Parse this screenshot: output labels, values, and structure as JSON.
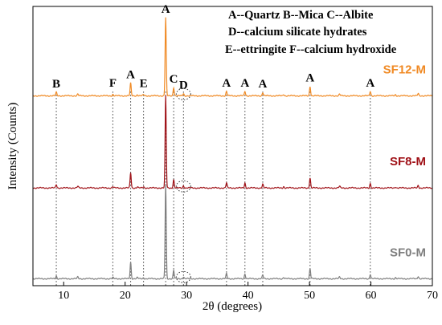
{
  "chart_data": {
    "type": "line",
    "xlabel": "2θ (degrees)",
    "ylabel": "Intensity (Counts)",
    "xlim": [
      5,
      70
    ],
    "xticks": [
      10,
      20,
      30,
      40,
      50,
      60,
      70
    ],
    "grid": false,
    "legend": [
      "A--Quartz  B--Mica  C--Albite",
      "D--calcium silicate hydrates",
      "E--ettringite   F--calcium hydroxide"
    ],
    "peak_markers": [
      {
        "label": "B",
        "x": 8.8
      },
      {
        "label": "F",
        "x": 18.0
      },
      {
        "label": "A",
        "x": 20.9
      },
      {
        "label": "E",
        "x": 23.0
      },
      {
        "label": "A",
        "x": 26.6
      },
      {
        "label": "C",
        "x": 27.9
      },
      {
        "label": "D",
        "x": 29.5
      },
      {
        "label": "A",
        "x": 36.5
      },
      {
        "label": "A",
        "x": 39.5
      },
      {
        "label": "A",
        "x": 42.4
      },
      {
        "label": "A",
        "x": 50.1
      },
      {
        "label": "A",
        "x": 59.9
      }
    ],
    "series": [
      {
        "name": "SF12-M",
        "color": "#f08a24",
        "baseline": 0.68,
        "peaks": [
          [
            8.8,
            0.012
          ],
          [
            12.3,
            0.006
          ],
          [
            18.0,
            0.005
          ],
          [
            20.9,
            0.045
          ],
          [
            22.0,
            0.004
          ],
          [
            23.0,
            0.004
          ],
          [
            26.6,
            0.28
          ],
          [
            27.9,
            0.03
          ],
          [
            29.5,
            0.008
          ],
          [
            36.5,
            0.016
          ],
          [
            39.5,
            0.016
          ],
          [
            42.4,
            0.012
          ],
          [
            45.8,
            0.005
          ],
          [
            50.1,
            0.034
          ],
          [
            54.9,
            0.006
          ],
          [
            59.9,
            0.016
          ],
          [
            64.0,
            0.004
          ],
          [
            67.7,
            0.008
          ]
        ]
      },
      {
        "name": "SF8-M",
        "color": "#a01218",
        "baseline": 0.35,
        "peaks": [
          [
            8.8,
            0.012
          ],
          [
            12.3,
            0.006
          ],
          [
            18.0,
            0.005
          ],
          [
            20.9,
            0.055
          ],
          [
            22.0,
            0.004
          ],
          [
            23.0,
            0.004
          ],
          [
            26.6,
            0.33
          ],
          [
            27.9,
            0.03
          ],
          [
            29.5,
            0.008
          ],
          [
            36.5,
            0.018
          ],
          [
            39.5,
            0.018
          ],
          [
            42.4,
            0.013
          ],
          [
            45.8,
            0.005
          ],
          [
            50.1,
            0.036
          ],
          [
            54.9,
            0.006
          ],
          [
            59.9,
            0.016
          ],
          [
            64.0,
            0.004
          ],
          [
            67.7,
            0.009
          ]
        ]
      },
      {
        "name": "SF0-M",
        "color": "#7f7f7f",
        "baseline": 0.025,
        "peaks": [
          [
            8.8,
            0.01
          ],
          [
            12.3,
            0.006
          ],
          [
            18.0,
            0.004
          ],
          [
            20.9,
            0.06
          ],
          [
            22.0,
            0.004
          ],
          [
            23.0,
            0.004
          ],
          [
            26.6,
            0.34
          ],
          [
            27.9,
            0.03
          ],
          [
            29.5,
            0.007
          ],
          [
            36.5,
            0.018
          ],
          [
            39.5,
            0.018
          ],
          [
            42.4,
            0.013
          ],
          [
            45.8,
            0.005
          ],
          [
            50.1,
            0.036
          ],
          [
            54.9,
            0.006
          ],
          [
            59.9,
            0.016
          ],
          [
            64.0,
            0.004
          ],
          [
            67.7,
            0.009
          ]
        ]
      }
    ]
  }
}
